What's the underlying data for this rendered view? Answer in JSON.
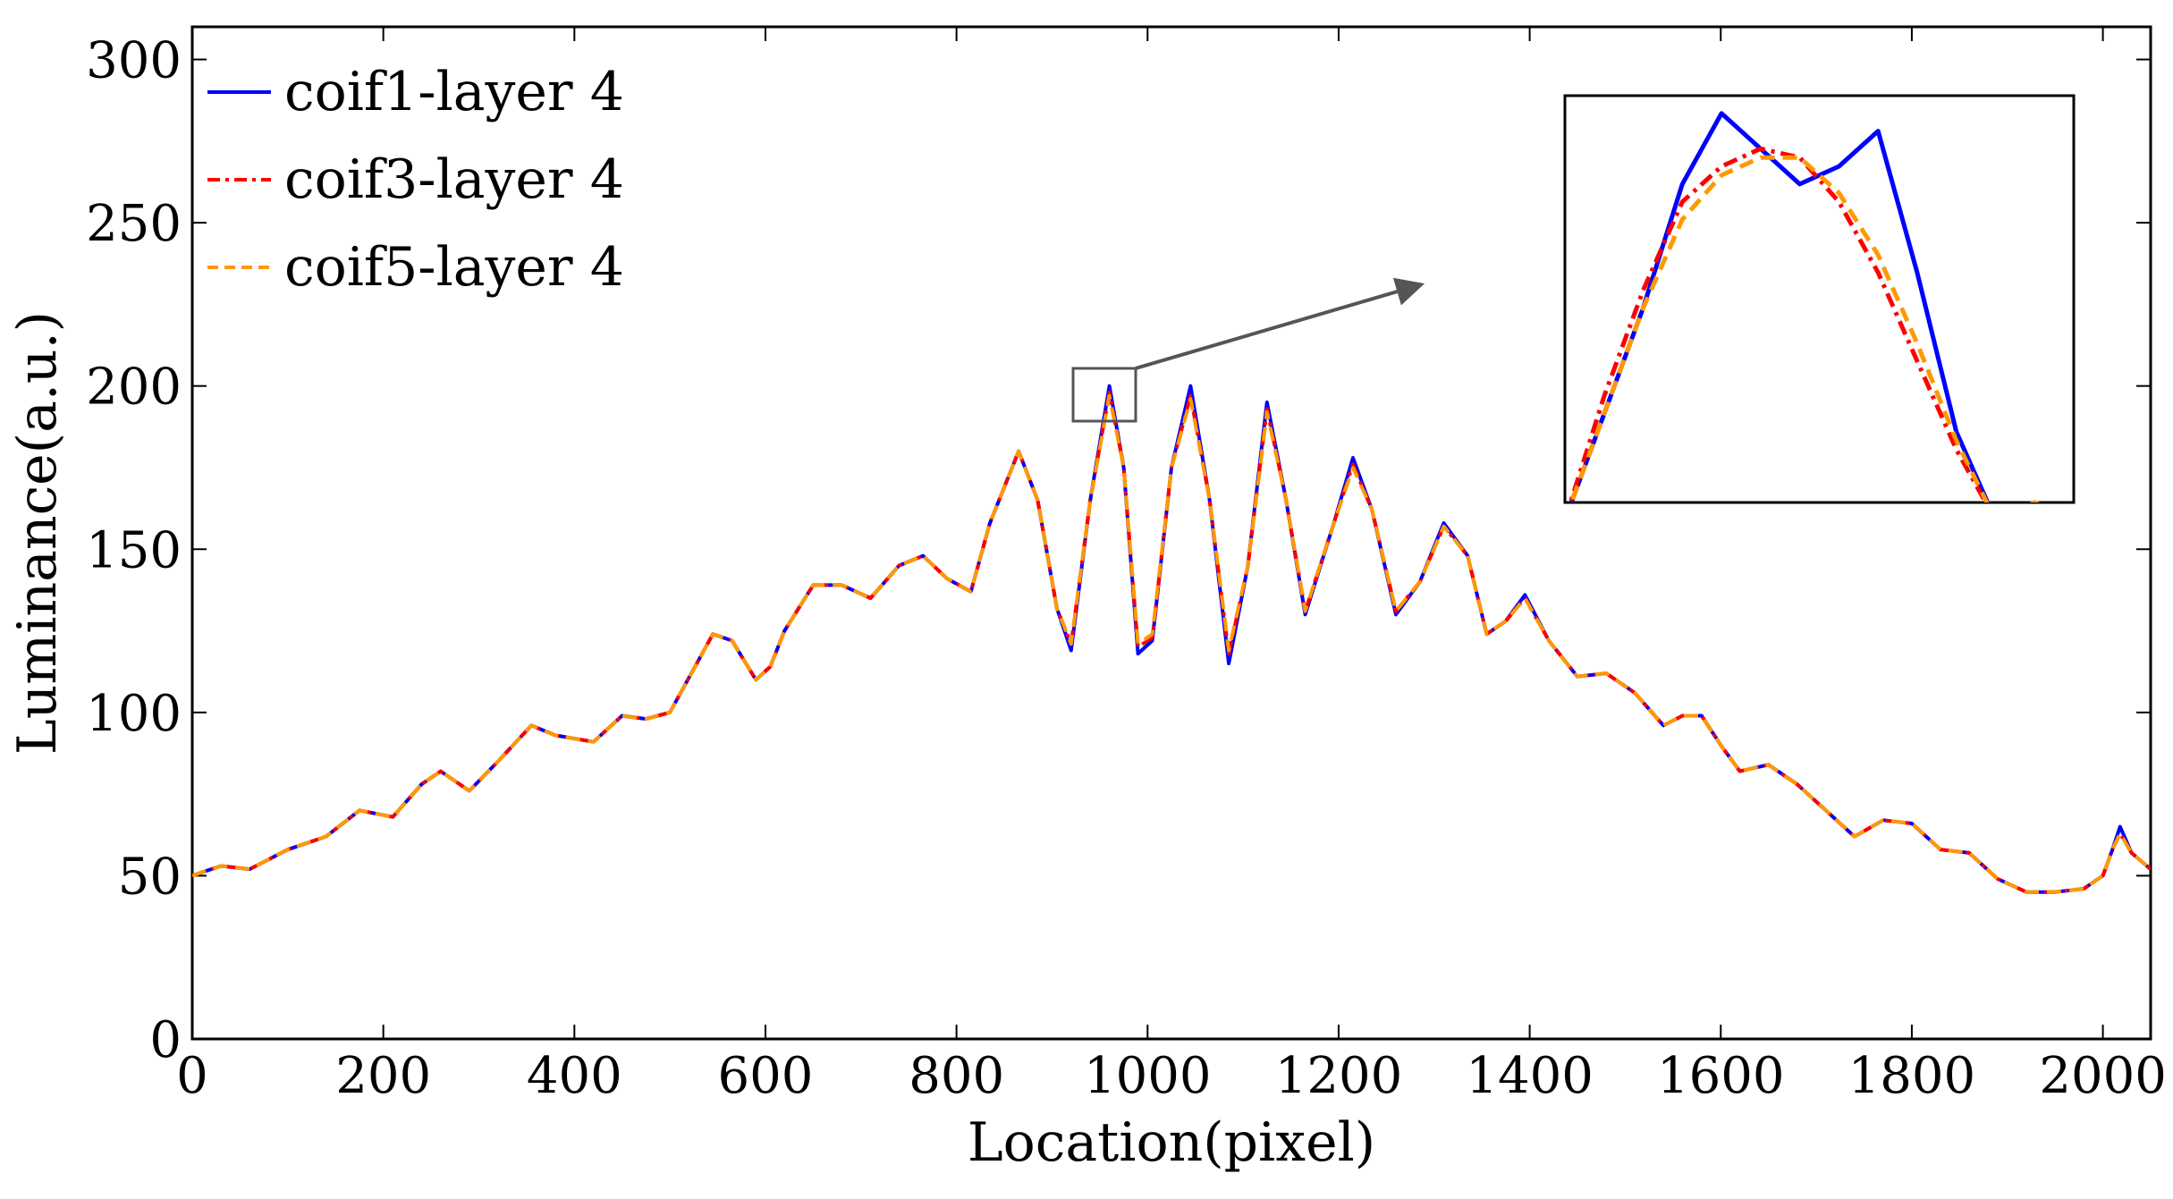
{
  "chart_data": {
    "type": "line",
    "xlabel": "Location(pixel)",
    "ylabel": "Luminance(a.u.)",
    "xlim": [
      0,
      2050
    ],
    "ylim": [
      0,
      310
    ],
    "xticks": [
      0,
      200,
      400,
      600,
      800,
      1000,
      1200,
      1400,
      1600,
      1800,
      2000
    ],
    "xtick_labels": [
      "0",
      "200",
      "400",
      "600",
      "800",
      "1000",
      "1200",
      "1400",
      "1600",
      "1800",
      "2000"
    ],
    "yticks": [
      0,
      50,
      100,
      150,
      200,
      250,
      300
    ],
    "ytick_labels": [
      "0",
      "50",
      "100",
      "150",
      "200",
      "250",
      "300"
    ],
    "grid": false,
    "legend_position": "top-left",
    "x": [
      0,
      30,
      60,
      80,
      100,
      140,
      175,
      210,
      240,
      260,
      290,
      320,
      355,
      380,
      420,
      450,
      475,
      500,
      545,
      565,
      590,
      605,
      620,
      650,
      680,
      710,
      740,
      765,
      790,
      815,
      835,
      865,
      885,
      905,
      920,
      940,
      960,
      975,
      990,
      1005,
      1025,
      1045,
      1065,
      1085,
      1105,
      1125,
      1145,
      1165,
      1195,
      1215,
      1235,
      1260,
      1285,
      1310,
      1335,
      1355,
      1375,
      1395,
      1420,
      1450,
      1480,
      1510,
      1540,
      1560,
      1580,
      1600,
      1620,
      1650,
      1680,
      1710,
      1740,
      1770,
      1800,
      1830,
      1860,
      1890,
      1920,
      1950,
      1980,
      2000,
      2010,
      2018,
      2030,
      2050
    ],
    "series": [
      {
        "name": "coif1-layer 4",
        "color": "#0000ff",
        "style": "solid",
        "values": [
          50,
          53,
          52,
          55,
          58,
          62,
          70,
          68,
          78,
          82,
          76,
          85,
          96,
          93,
          91,
          99,
          98,
          100,
          124,
          122,
          110,
          114,
          125,
          139,
          139,
          135,
          145,
          148,
          141,
          137,
          158,
          180,
          165,
          132,
          119,
          165,
          200,
          175,
          118,
          122,
          175,
          200,
          165,
          115,
          145,
          195,
          165,
          130,
          158,
          178,
          162,
          130,
          140,
          158,
          148,
          124,
          128,
          136,
          122,
          111,
          112,
          106,
          96,
          99,
          99,
          90,
          82,
          84,
          78,
          70,
          62,
          67,
          66,
          58,
          57,
          49,
          45,
          45,
          46,
          50,
          58,
          65,
          57,
          52
        ]
      },
      {
        "name": "coif3-layer 4",
        "color": "#ff0000",
        "style": "dashdot",
        "values": [
          50,
          53,
          52,
          55,
          58,
          62,
          70,
          68,
          78,
          82,
          76,
          85,
          96,
          93,
          91,
          99,
          98,
          100,
          124,
          122,
          110,
          114,
          125,
          139,
          139,
          135,
          145,
          148,
          141,
          137,
          158,
          180,
          165,
          132,
          121,
          165,
          198,
          175,
          120,
          123,
          175,
          197,
          165,
          118,
          145,
          193,
          165,
          131,
          158,
          176,
          162,
          131,
          140,
          157,
          148,
          124,
          128,
          135,
          122,
          111,
          112,
          106,
          96,
          99,
          99,
          90,
          82,
          84,
          78,
          70,
          62,
          67,
          66,
          58,
          57,
          49,
          45,
          45,
          46,
          50,
          58,
          63,
          57,
          52
        ]
      },
      {
        "name": "coif5-layer 4",
        "color": "#ff9900",
        "style": "dashed",
        "values": [
          50,
          53,
          52,
          55,
          58,
          62,
          70,
          68,
          78,
          82,
          76,
          85,
          96,
          93,
          91,
          99,
          98,
          100,
          124,
          122,
          110,
          114,
          125,
          139,
          139,
          135,
          145,
          148,
          141,
          137,
          158,
          180,
          165,
          132,
          121,
          165,
          197,
          175,
          121,
          124,
          175,
          196,
          165,
          119,
          145,
          192,
          165,
          131,
          158,
          175,
          162,
          131,
          140,
          157,
          148,
          124,
          128,
          135,
          122,
          111,
          112,
          106,
          96,
          99,
          99,
          90,
          82,
          84,
          78,
          70,
          62,
          67,
          66,
          58,
          57,
          49,
          45,
          45,
          46,
          50,
          58,
          63,
          57,
          52
        ]
      }
    ],
    "inset": {
      "description": "zoom of peak near x=960, y=200",
      "zoom_xlim": [
        930,
        995
      ],
      "zoom_ylim": [
        188,
        211
      ],
      "x": [
        930,
        935,
        940,
        945,
        950,
        955,
        960,
        965,
        970,
        975,
        980,
        985,
        990,
        995
      ],
      "series": [
        {
          "name": "coif1-layer 4",
          "values": [
            187,
            193,
            199,
            206,
            210,
            208,
            206,
            207,
            209,
            201,
            192,
            187,
            188,
            187
          ]
        },
        {
          "name": "coif3-layer 4",
          "values": [
            187,
            194,
            200,
            205,
            207,
            208,
            207.5,
            205,
            201,
            196,
            191,
            187,
            188,
            187
          ]
        },
        {
          "name": "coif5-layer 4",
          "values": [
            187,
            193,
            199,
            204,
            206.5,
            207.5,
            207.5,
            205.5,
            202,
            197,
            191.5,
            187,
            188,
            187
          ]
        }
      ]
    }
  }
}
